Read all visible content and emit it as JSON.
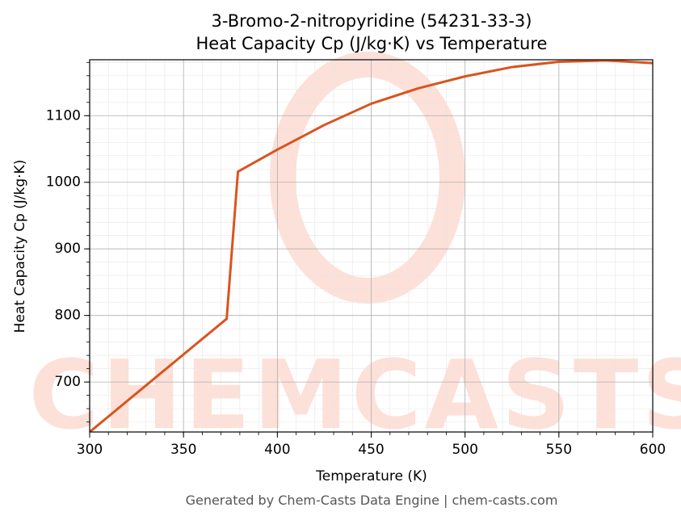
{
  "chart_data": {
    "type": "line",
    "title": "3-Bromo-2-nitropyridine (54231-33-3)",
    "subtitle": "Heat Capacity Cp (J/kg·K) vs Temperature",
    "x_label": "Temperature (K)",
    "y_label": "Heat Capacity Cp (J/kg·K)",
    "footer": "Generated by Chem-Casts Data Engine | chem-casts.com",
    "watermark": "CHEMCASTS",
    "x": [
      300,
      373,
      379,
      400,
      425,
      450,
      475,
      500,
      525,
      550,
      575,
      600
    ],
    "series": [
      {
        "name": "Heat Capacity Cp",
        "color": "#d9541e",
        "values": [
          625,
          795,
          1016,
          1049,
          1086,
          1118,
          1141,
          1159,
          1173,
          1181,
          1183,
          1179
        ]
      }
    ],
    "xlim": [
      300,
      600
    ],
    "xticks": [
      300,
      350,
      400,
      450,
      500,
      550,
      600
    ],
    "ylim": [
      625,
      1184
    ],
    "yticks": [
      700,
      800,
      900,
      1000,
      1100
    ],
    "grid": true
  }
}
